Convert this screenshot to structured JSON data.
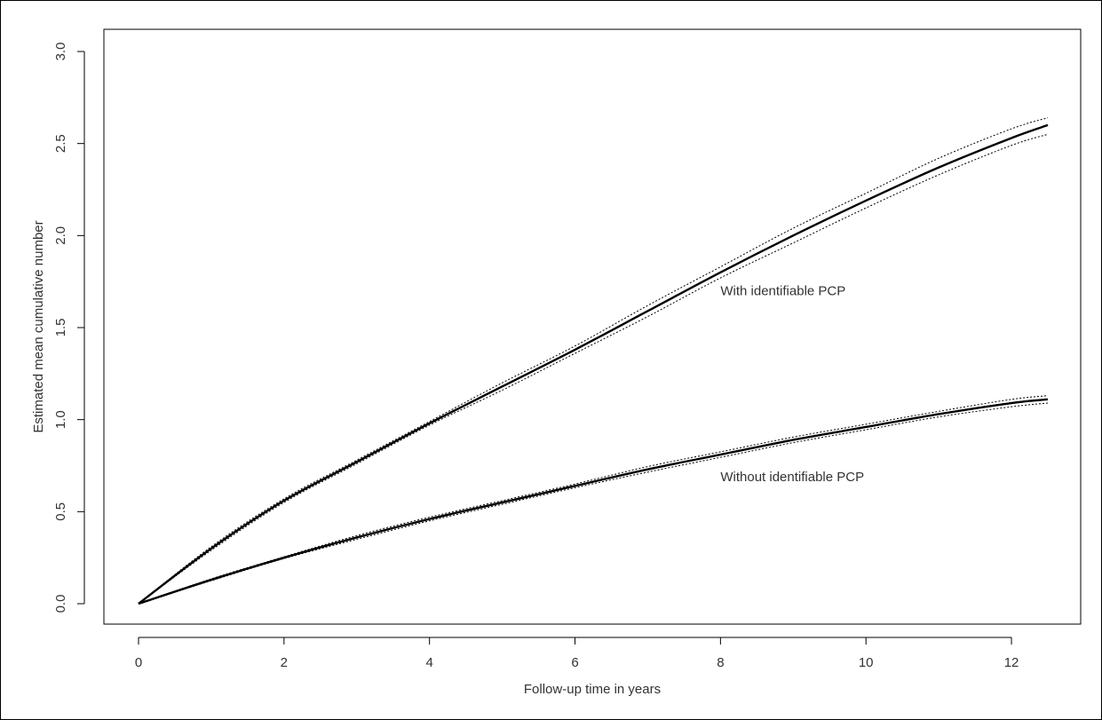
{
  "chart_data": {
    "type": "line",
    "title": "",
    "xlabel": "Follow-up time in years",
    "ylabel": "Estimated mean cumulative number",
    "xlim": [
      0,
      12.5
    ],
    "ylim": [
      0,
      3.0
    ],
    "x_ticks": [
      0,
      2,
      4,
      6,
      8,
      10,
      12
    ],
    "y_ticks": [
      0.0,
      0.5,
      1.0,
      1.5,
      2.0,
      2.5,
      3.0
    ],
    "x_tick_labels": [
      "0",
      "2",
      "4",
      "6",
      "8",
      "10",
      "12"
    ],
    "y_tick_labels": [
      "0.0",
      "0.5",
      "1.0",
      "1.5",
      "2.0",
      "2.5",
      "3.0"
    ],
    "grid": false,
    "legend": "none",
    "line_color": "#000000",
    "x": [
      0,
      1,
      2,
      3,
      4,
      5,
      6,
      7,
      8,
      9,
      10,
      11,
      12,
      12.5
    ],
    "series": [
      {
        "name": "With identifiable PCP",
        "values": [
          0.0,
          0.3,
          0.56,
          0.77,
          0.98,
          1.18,
          1.38,
          1.59,
          1.8,
          2.0,
          2.19,
          2.37,
          2.53,
          2.6
        ],
        "lower": [
          0.0,
          0.29,
          0.55,
          0.76,
          0.97,
          1.16,
          1.36,
          1.56,
          1.77,
          1.96,
          2.15,
          2.33,
          2.49,
          2.55
        ],
        "upper": [
          0.0,
          0.31,
          0.57,
          0.78,
          0.99,
          1.2,
          1.4,
          1.62,
          1.83,
          2.04,
          2.23,
          2.42,
          2.58,
          2.64
        ],
        "annotation": "With identifiable PCP",
        "annotation_at": [
          8.0,
          1.7
        ]
      },
      {
        "name": "Without identifiable PCP",
        "values": [
          0.0,
          0.13,
          0.25,
          0.36,
          0.46,
          0.55,
          0.64,
          0.73,
          0.81,
          0.89,
          0.96,
          1.03,
          1.09,
          1.11
        ],
        "lower": [
          0.0,
          0.125,
          0.245,
          0.35,
          0.45,
          0.54,
          0.63,
          0.715,
          0.795,
          0.875,
          0.945,
          1.015,
          1.07,
          1.09
        ],
        "upper": [
          0.0,
          0.135,
          0.255,
          0.37,
          0.47,
          0.56,
          0.65,
          0.745,
          0.825,
          0.905,
          0.975,
          1.045,
          1.11,
          1.13
        ],
        "annotation": "Without identifiable PCP",
        "annotation_at": [
          8.0,
          0.69
        ]
      }
    ]
  }
}
